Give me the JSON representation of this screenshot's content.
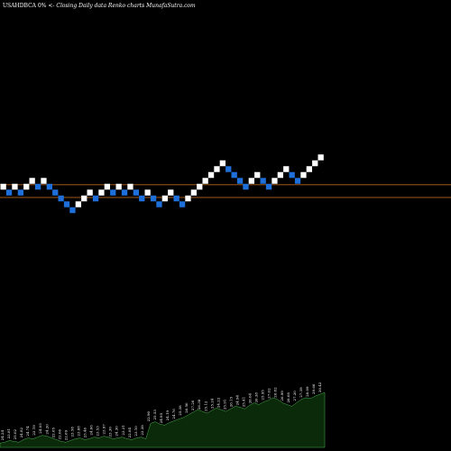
{
  "header": {
    "symbol": "USAHDBCA",
    "change": "0%",
    "arrows": "<-",
    "description": "Closing Daily data  Renko  charts MunafaSutra.com"
  },
  "colors": {
    "background": "#000000",
    "up_brick": "#ffffff",
    "down_brick": "#1e6fd9",
    "ref_line": "#b5651d",
    "volume_fill": "#0a2a0a",
    "volume_edge": "#4caf50"
  },
  "chart_data": [
    {
      "type": "renko",
      "title": "",
      "price_range": [
        0,
        40
      ],
      "reference_lines": [
        24.6,
        23.3
      ],
      "bricks": [
        {
          "d": "up",
          "v": 24.4
        },
        {
          "d": "down",
          "v": 23.8
        },
        {
          "d": "up",
          "v": 24.4
        },
        {
          "d": "down",
          "v": 23.8
        },
        {
          "d": "up",
          "v": 24.4
        },
        {
          "d": "up",
          "v": 25.0
        },
        {
          "d": "down",
          "v": 24.4
        },
        {
          "d": "up",
          "v": 25.0
        },
        {
          "d": "down",
          "v": 24.4
        },
        {
          "d": "down",
          "v": 23.8
        },
        {
          "d": "down",
          "v": 23.2
        },
        {
          "d": "down",
          "v": 22.6
        },
        {
          "d": "down",
          "v": 22.0
        },
        {
          "d": "up",
          "v": 22.6
        },
        {
          "d": "up",
          "v": 23.2
        },
        {
          "d": "up",
          "v": 23.8
        },
        {
          "d": "down",
          "v": 23.2
        },
        {
          "d": "up",
          "v": 23.8
        },
        {
          "d": "up",
          "v": 24.4
        },
        {
          "d": "down",
          "v": 23.8
        },
        {
          "d": "up",
          "v": 24.4
        },
        {
          "d": "down",
          "v": 23.8
        },
        {
          "d": "up",
          "v": 24.4
        },
        {
          "d": "down",
          "v": 23.8
        },
        {
          "d": "down",
          "v": 23.2
        },
        {
          "d": "up",
          "v": 23.8
        },
        {
          "d": "down",
          "v": 23.2
        },
        {
          "d": "down",
          "v": 22.6
        },
        {
          "d": "up",
          "v": 23.2
        },
        {
          "d": "up",
          "v": 23.8
        },
        {
          "d": "down",
          "v": 23.2
        },
        {
          "d": "down",
          "v": 22.6
        },
        {
          "d": "up",
          "v": 23.2
        },
        {
          "d": "up",
          "v": 23.8
        },
        {
          "d": "up",
          "v": 24.4
        },
        {
          "d": "up",
          "v": 25.0
        },
        {
          "d": "up",
          "v": 25.6
        },
        {
          "d": "up",
          "v": 26.2
        },
        {
          "d": "up",
          "v": 26.8
        },
        {
          "d": "down",
          "v": 26.2
        },
        {
          "d": "down",
          "v": 25.6
        },
        {
          "d": "down",
          "v": 25.0
        },
        {
          "d": "down",
          "v": 24.4
        },
        {
          "d": "up",
          "v": 25.0
        },
        {
          "d": "up",
          "v": 25.6
        },
        {
          "d": "down",
          "v": 25.0
        },
        {
          "d": "down",
          "v": 24.4
        },
        {
          "d": "up",
          "v": 25.0
        },
        {
          "d": "up",
          "v": 25.6
        },
        {
          "d": "up",
          "v": 26.2
        },
        {
          "d": "down",
          "v": 25.6
        },
        {
          "d": "down",
          "v": 25.0
        },
        {
          "d": "up",
          "v": 25.6
        },
        {
          "d": "up",
          "v": 26.2
        },
        {
          "d": "up",
          "v": 26.8
        },
        {
          "d": "up",
          "v": 27.4
        }
      ]
    },
    {
      "type": "area",
      "title": "",
      "ylim": [
        0,
        100
      ],
      "volume_values": [
        5,
        6,
        8,
        7,
        6,
        9,
        11,
        10,
        12,
        14,
        13,
        11,
        9,
        7,
        6,
        8,
        10,
        11,
        9,
        10,
        12,
        11,
        13,
        12,
        10,
        11,
        12,
        10,
        9,
        11,
        12,
        10,
        28,
        30,
        27,
        26,
        29,
        31,
        33,
        35,
        38,
        41,
        44,
        42,
        40,
        43,
        46,
        44,
        42,
        45,
        48,
        47,
        45,
        49,
        52,
        50,
        53,
        55,
        58,
        56,
        52,
        50,
        48,
        52,
        56,
        58,
        57,
        60,
        62,
        64
      ],
      "labels": [
        "24.24",
        "23.81",
        "25.02",
        "24.82",
        "24.74",
        "23.19",
        "24.05",
        "24.20",
        "22.85",
        "22.06",
        "22.69",
        "23.58",
        "23.88",
        "23.46",
        "24.06",
        "23.53",
        "23.97",
        "23.30",
        "24.30",
        "23.31",
        "22.84",
        "23.10",
        "23.38",
        "22.90",
        "25.53",
        "24.95",
        "24.19",
        "24.76",
        "25.38",
        "26.50",
        "27.20",
        "26.38",
        "25.12",
        "25.24",
        "24.22",
        "25.91",
        "26.15",
        "24.94",
        "25.41",
        "26.04",
        "26.38",
        "25.95",
        "27.02",
        "26.82",
        "26.99",
        "28.08",
        "27.20",
        "27.39",
        "28.09",
        "29.66",
        "30.42"
      ]
    }
  ]
}
